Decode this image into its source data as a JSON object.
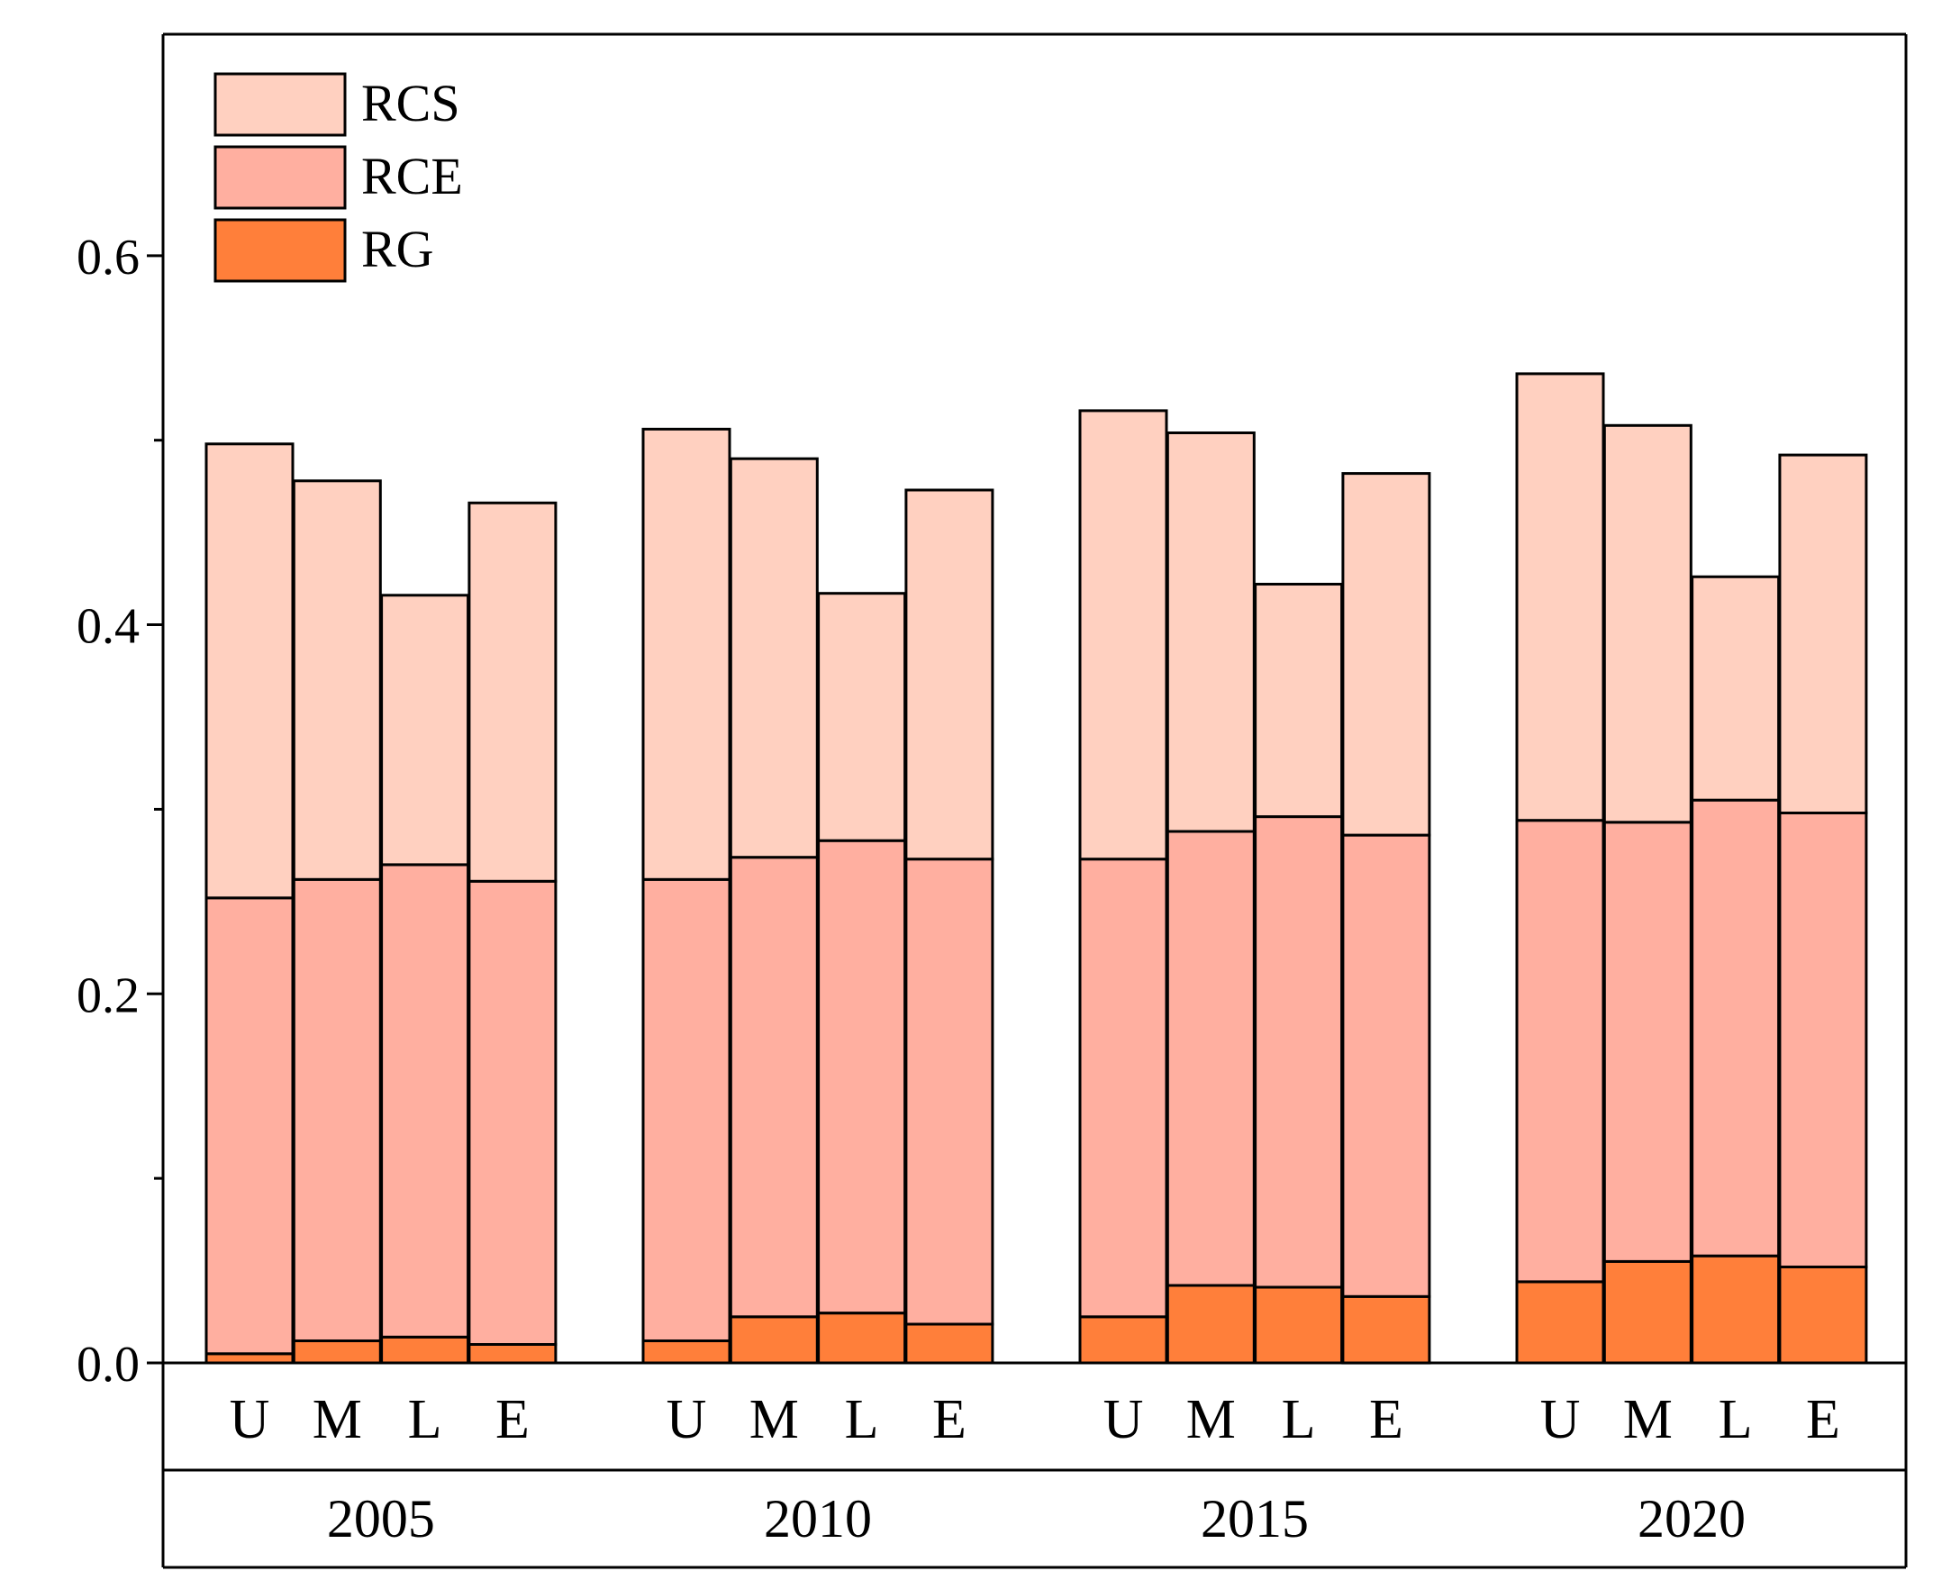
{
  "chart_data": {
    "type": "bar",
    "stacked": true,
    "title": "",
    "xlabel": "",
    "ylabel": "",
    "ylim": [
      0,
      0.72
    ],
    "yticks": [
      0.0,
      0.2,
      0.4,
      0.6
    ],
    "ytick_labels": [
      "0.0",
      "0.2",
      "0.4",
      "0.6"
    ],
    "minor_yticks": [
      0.1,
      0.3,
      0.5
    ],
    "grid": false,
    "legend_position": "top-left",
    "groups": [
      "2005",
      "2010",
      "2015",
      "2020"
    ],
    "categories": [
      "U",
      "M",
      "L",
      "E"
    ],
    "series": [
      {
        "name": "RG",
        "color": "#FF7F3A",
        "values": [
          [
            0.005,
            0.012,
            0.014,
            0.01
          ],
          [
            0.012,
            0.025,
            0.027,
            0.021
          ],
          [
            0.025,
            0.042,
            0.041,
            0.036
          ],
          [
            0.044,
            0.055,
            0.058,
            0.052
          ]
        ]
      },
      {
        "name": "RCE",
        "color": "#FFAFA0",
        "values": [
          [
            0.247,
            0.25,
            0.256,
            0.251
          ],
          [
            0.25,
            0.249,
            0.256,
            0.252
          ],
          [
            0.248,
            0.246,
            0.255,
            0.25
          ],
          [
            0.25,
            0.238,
            0.247,
            0.246
          ]
        ]
      },
      {
        "name": "RCS",
        "color": "#FFD0C0",
        "values": [
          [
            0.246,
            0.216,
            0.146,
            0.205
          ],
          [
            0.244,
            0.216,
            0.134,
            0.2
          ],
          [
            0.243,
            0.216,
            0.126,
            0.196
          ],
          [
            0.242,
            0.215,
            0.121,
            0.194
          ]
        ]
      }
    ]
  }
}
